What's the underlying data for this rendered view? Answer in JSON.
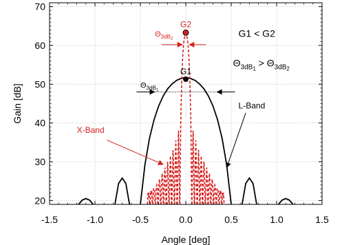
{
  "chart_data": {
    "type": "line",
    "xlabel": "Angle [deg]",
    "ylabel": "Gain [dB]",
    "xlim": [
      -1.5,
      1.5
    ],
    "ylim": [
      19,
      71
    ],
    "x_ticks": [
      "-1.5",
      "-1.0",
      "-0.5",
      "0.0",
      "0.5",
      "1.0",
      "1.5"
    ],
    "y_ticks": [
      "20",
      "30",
      "40",
      "50",
      "60",
      "70"
    ],
    "grid": true,
    "series": [
      {
        "name": "L-Band",
        "color": "#000000",
        "style": "solid",
        "main_lobe": [
          [
            -0.5,
            19
          ],
          [
            -0.45,
            29.2
          ],
          [
            -0.4,
            36.0
          ],
          [
            -0.35,
            40.8
          ],
          [
            -0.3,
            44.3
          ],
          [
            -0.25,
            46.9
          ],
          [
            -0.2,
            48.8
          ],
          [
            -0.15,
            50.1
          ],
          [
            -0.1,
            51.0
          ],
          [
            -0.05,
            51.5
          ],
          [
            0.0,
            51.7
          ],
          [
            0.05,
            51.5
          ],
          [
            0.1,
            51.0
          ],
          [
            0.15,
            50.1
          ],
          [
            0.2,
            48.8
          ],
          [
            0.25,
            46.9
          ],
          [
            0.3,
            44.3
          ],
          [
            0.35,
            40.8
          ],
          [
            0.4,
            36.0
          ],
          [
            0.45,
            29.2
          ],
          [
            0.5,
            19
          ]
        ],
        "side_lobes": [
          [
            [
              -0.78,
              19
            ],
            [
              -0.74,
              24.4
            ],
            [
              -0.7,
              25.8
            ],
            [
              -0.66,
              24.4
            ],
            [
              -0.62,
              19
            ]
          ],
          [
            [
              0.62,
              19
            ],
            [
              0.66,
              24.4
            ],
            [
              0.7,
              25.8
            ],
            [
              0.74,
              24.4
            ],
            [
              0.78,
              19
            ]
          ],
          [
            [
              -1.18,
              19
            ],
            [
              -1.14,
              20.1
            ],
            [
              -1.1,
              20.5
            ],
            [
              -1.06,
              20.1
            ],
            [
              -1.02,
              19
            ]
          ],
          [
            [
              1.02,
              19
            ],
            [
              1.06,
              20.1
            ],
            [
              1.1,
              20.5
            ],
            [
              1.14,
              20.1
            ],
            [
              1.18,
              19
            ]
          ]
        ]
      },
      {
        "name": "X-Band",
        "color": "#d62020",
        "style": "dashed",
        "main_lobe": [
          [
            -0.065,
            19
          ],
          [
            -0.055,
            41.0
          ],
          [
            -0.045,
            51.0
          ],
          [
            -0.035,
            56.8
          ],
          [
            -0.025,
            60.2
          ],
          [
            -0.015,
            62.0
          ],
          [
            -0.005,
            62.9
          ],
          [
            0.0,
            63.1
          ],
          [
            0.005,
            62.9
          ],
          [
            0.015,
            62.0
          ],
          [
            0.025,
            60.2
          ],
          [
            0.035,
            56.8
          ],
          [
            0.045,
            51.0
          ],
          [
            0.055,
            41.0
          ],
          [
            0.065,
            19
          ]
        ],
        "side_lobe_peak_offsets": [
          0.08,
          0.11,
          0.14,
          0.17,
          0.2,
          0.23,
          0.26,
          0.29,
          0.32,
          0.35,
          0.38,
          0.41
        ],
        "side_lobe_peak_gains": [
          38.0,
          35.5,
          33.0,
          31.5,
          30.0,
          28.5,
          27.0,
          25.5,
          24.0,
          23.0,
          22.0,
          21.0
        ]
      }
    ],
    "annotations": {
      "g1_label": "G1",
      "g1_point": [
        0.0,
        51.3
      ],
      "g2_label": "G2",
      "g2_point": [
        0.0,
        63.3
      ],
      "theta1_prefix": "Θ",
      "theta1_sub": "3dB",
      "theta1_subsub": "1",
      "theta1_y": 48.0,
      "theta1_halfwidth": 0.33,
      "theta2_prefix": "Θ",
      "theta2_sub": "3dB",
      "theta2_subsub": "2",
      "theta2_y": 60.2,
      "theta2_halfwidth": 0.025,
      "cmp1": "G1 < G2",
      "cmp2_left_prefix": "Θ",
      "cmp2_left_sub": "3dB",
      "cmp2_left_subsub": "1",
      "cmp2_op": " > ",
      "cmp2_right_prefix": "Θ",
      "cmp2_right_sub": "3dB",
      "cmp2_right_subsub": "2",
      "l_band_label": "L-Band",
      "x_band_label": "X-Band"
    }
  }
}
